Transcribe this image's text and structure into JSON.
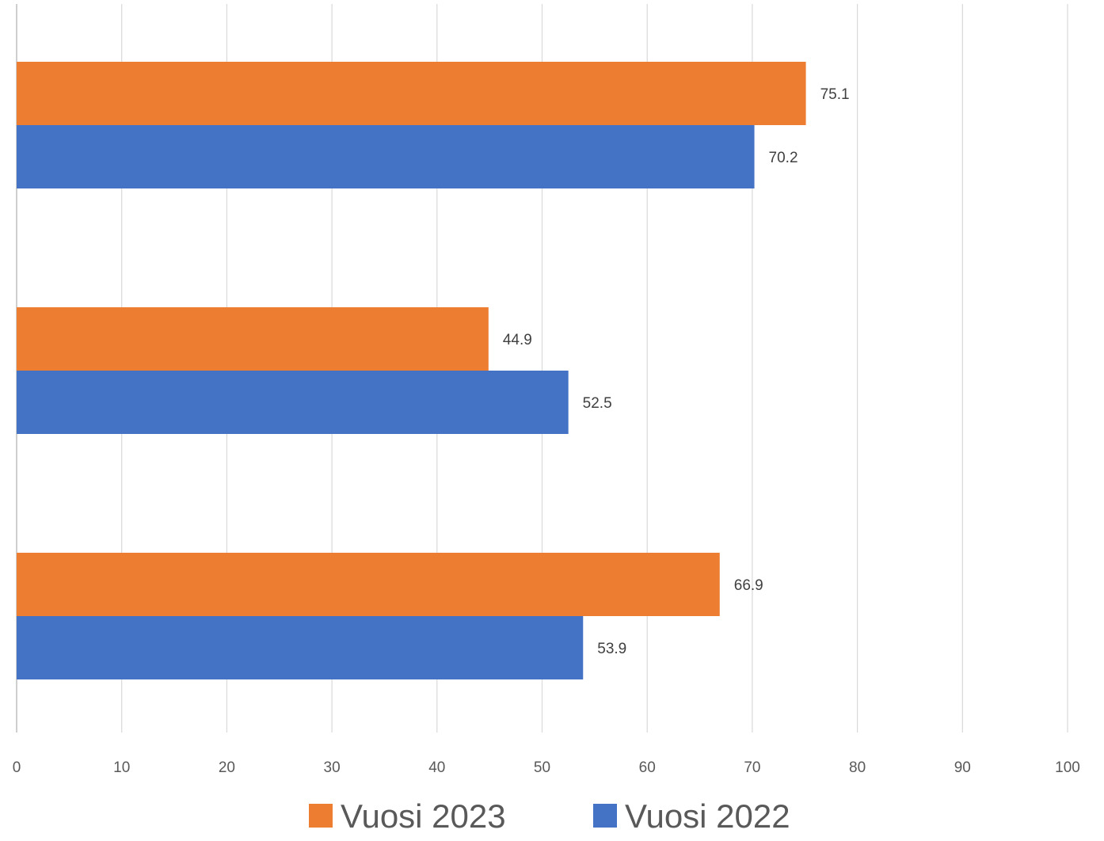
{
  "chart_data": {
    "type": "bar",
    "orientation": "horizontal",
    "categories": [
      "",
      "",
      ""
    ],
    "series": [
      {
        "name": "Vuosi 2023",
        "color": "#ED7D31",
        "values": [
          75.1,
          44.9,
          66.9
        ],
        "labels": [
          "75.1",
          "44.9",
          "66.9"
        ]
      },
      {
        "name": "Vuosi 2022",
        "color": "#4472C4",
        "values": [
          70.2,
          52.5,
          53.9
        ],
        "labels": [
          "70.2",
          "52.5",
          "53.9"
        ]
      }
    ],
    "xlim": [
      0,
      100
    ],
    "xticks": [
      "0",
      "10",
      "20",
      "30",
      "40",
      "50",
      "60",
      "70",
      "80",
      "90",
      "100"
    ],
    "title": "",
    "xlabel": "",
    "ylabel": "",
    "grid": "vertical",
    "legend": "bottom-center"
  }
}
